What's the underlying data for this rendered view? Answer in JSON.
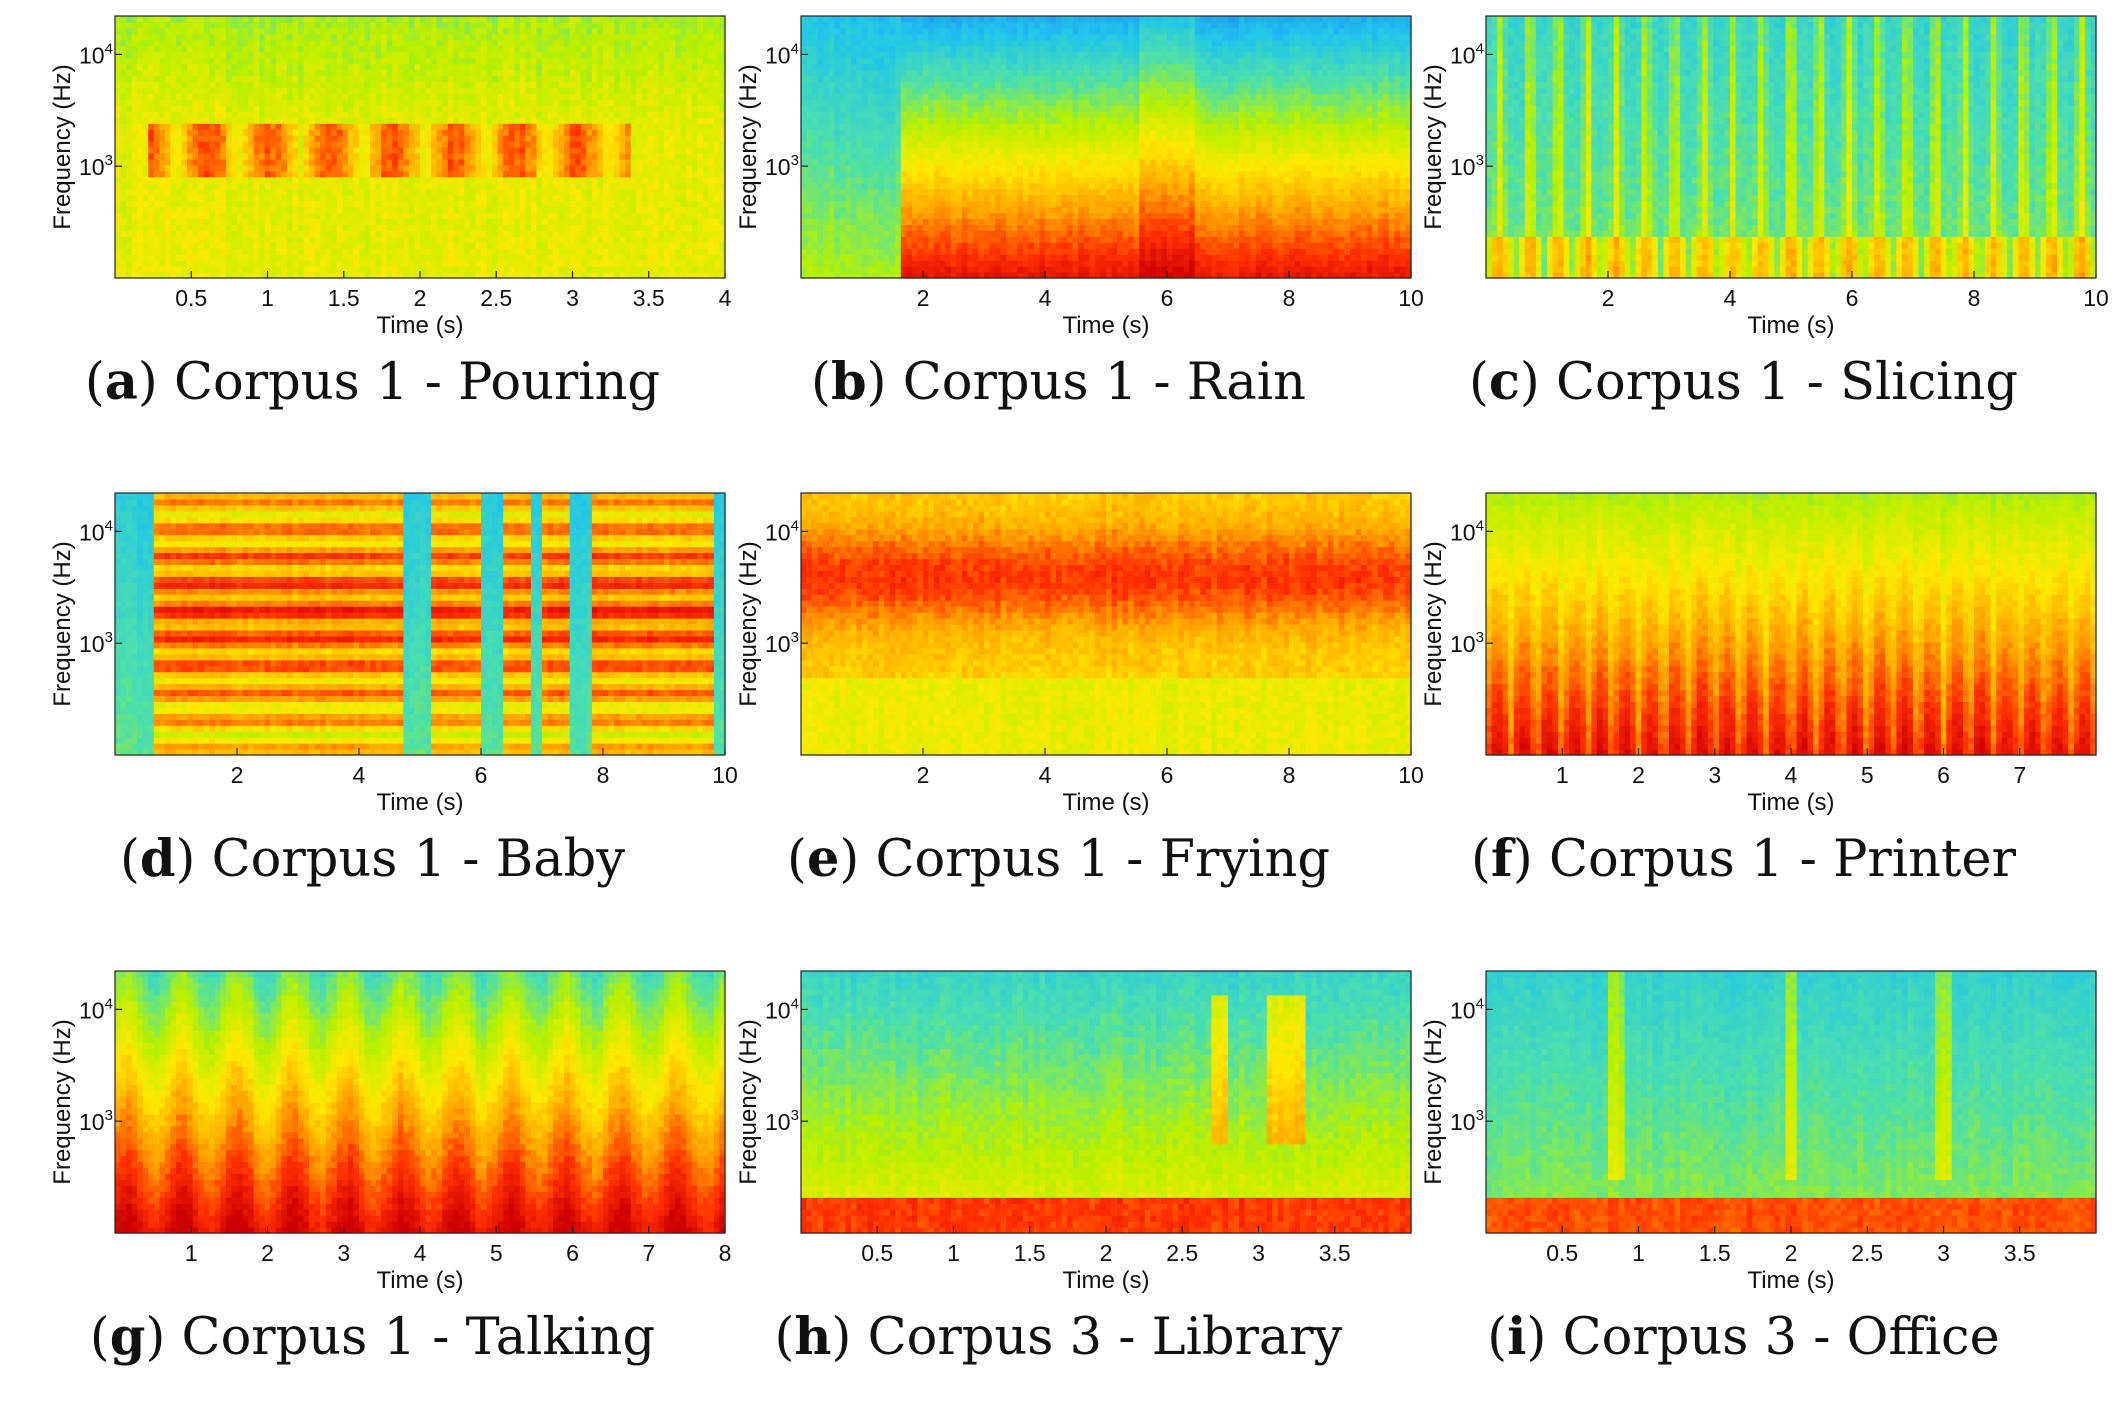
{
  "figure": {
    "colormap": [
      "#0033cc",
      "#1e90ff",
      "#22c7e8",
      "#4fe0a8",
      "#b8f000",
      "#ffe800",
      "#ffa000",
      "#ff3000",
      "#cc0000"
    ],
    "frequency_ticks": [
      {
        "base": "10",
        "exp": "4",
        "value": 10000
      },
      {
        "base": "10",
        "exp": "3",
        "value": 1000
      }
    ]
  },
  "chart_data": [
    {
      "type": "heatmap",
      "label": "a",
      "title": "Corpus 1 - Pouring",
      "xlabel": "Time (s)",
      "ylabel": "Frequency (Hz)",
      "xlim": [
        0,
        4
      ],
      "ylim_hz": [
        100,
        22050
      ],
      "xticks": [
        "0.5",
        "1",
        "1.5",
        "2",
        "2.5",
        "3",
        "3.5",
        "4"
      ],
      "xtick_values": [
        0.5,
        1,
        1.5,
        2,
        2.5,
        3,
        3.5,
        4
      ],
      "profile": "pouring"
    },
    {
      "type": "heatmap",
      "label": "b",
      "title": "Corpus 1 - Rain",
      "xlabel": "Time (s)",
      "ylabel": "Frequency (Hz)",
      "xlim": [
        0,
        10
      ],
      "ylim_hz": [
        100,
        22050
      ],
      "xticks": [
        "2",
        "4",
        "6",
        "8",
        "10"
      ],
      "xtick_values": [
        2,
        4,
        6,
        8,
        10
      ],
      "profile": "rain"
    },
    {
      "type": "heatmap",
      "label": "c",
      "title": "Corpus 1 - Slicing",
      "xlabel": "Time (s)",
      "ylabel": "Frequency (Hz)",
      "xlim": [
        0,
        10
      ],
      "ylim_hz": [
        100,
        22050
      ],
      "xticks": [
        "2",
        "4",
        "6",
        "8",
        "10"
      ],
      "xtick_values": [
        2,
        4,
        6,
        8,
        10
      ],
      "profile": "slicing"
    },
    {
      "type": "heatmap",
      "label": "d",
      "title": "Corpus 1 - Baby",
      "xlabel": "Time (s)",
      "ylabel": "Frequency (Hz)",
      "xlim": [
        0,
        10
      ],
      "ylim_hz": [
        100,
        22050
      ],
      "xticks": [
        "2",
        "4",
        "6",
        "8",
        "10"
      ],
      "xtick_values": [
        2,
        4,
        6,
        8,
        10
      ],
      "profile": "baby"
    },
    {
      "type": "heatmap",
      "label": "e",
      "title": "Corpus 1 - Frying",
      "xlabel": "Time (s)",
      "ylabel": "Frequency (Hz)",
      "xlim": [
        0,
        10
      ],
      "ylim_hz": [
        100,
        22050
      ],
      "xticks": [
        "2",
        "4",
        "6",
        "8",
        "10"
      ],
      "xtick_values": [
        2,
        4,
        6,
        8,
        10
      ],
      "profile": "frying"
    },
    {
      "type": "heatmap",
      "label": "f",
      "title": "Corpus 1 - Printer",
      "xlabel": "Time (s)",
      "ylabel": "Frequency (Hz)",
      "xlim": [
        0,
        8
      ],
      "ylim_hz": [
        100,
        22050
      ],
      "xticks": [
        "1",
        "2",
        "3",
        "4",
        "5",
        "6",
        "7"
      ],
      "xtick_values": [
        1,
        2,
        3,
        4,
        5,
        6,
        7
      ],
      "profile": "printer"
    },
    {
      "type": "heatmap",
      "label": "g",
      "title": "Corpus 1 - Talking",
      "xlabel": "Time (s)",
      "ylabel": "Frequency (Hz)",
      "xlim": [
        0,
        8
      ],
      "ylim_hz": [
        100,
        22050
      ],
      "xticks": [
        "1",
        "2",
        "3",
        "4",
        "5",
        "6",
        "7",
        "8"
      ],
      "xtick_values": [
        1,
        2,
        3,
        4,
        5,
        6,
        7,
        8
      ],
      "profile": "talking"
    },
    {
      "type": "heatmap",
      "label": "h",
      "title": "Corpus 3 - Library",
      "xlabel": "Time (s)",
      "ylabel": "Frequency (Hz)",
      "xlim": [
        0,
        4
      ],
      "ylim_hz": [
        100,
        22050
      ],
      "xticks": [
        "0.5",
        "1",
        "1.5",
        "2",
        "2.5",
        "3",
        "3.5"
      ],
      "xtick_values": [
        0.5,
        1,
        1.5,
        2,
        2.5,
        3,
        3.5
      ],
      "profile": "library"
    },
    {
      "type": "heatmap",
      "label": "i",
      "title": "Corpus 3 - Office",
      "xlabel": "Time (s)",
      "ylabel": "Frequency (Hz)",
      "xlim": [
        0,
        4
      ],
      "ylim_hz": [
        100,
        22050
      ],
      "xticks": [
        "0.5",
        "1",
        "1.5",
        "2",
        "2.5",
        "3",
        "3.5"
      ],
      "xtick_values": [
        0.5,
        1,
        1.5,
        2,
        2.5,
        3,
        3.5
      ],
      "profile": "office"
    }
  ]
}
